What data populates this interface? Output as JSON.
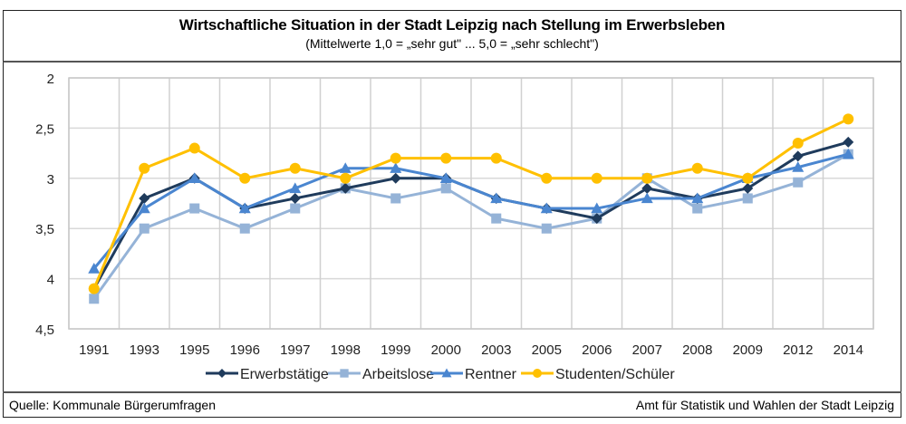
{
  "header": {
    "title": "Wirtschaftliche Situation in der Stadt Leipzig nach Stellung im Erwerbsleben",
    "subtitle": "(Mittelwerte 1,0 = „sehr gut\" ... 5,0 = „sehr schlecht\")"
  },
  "footer": {
    "source": "Quelle: Kommunale Bürgerumfragen",
    "organization": "Amt für Statistik und Wahlen der Stadt Leipzig"
  },
  "chart_data": {
    "type": "line",
    "title": "Wirtschaftliche Situation in der Stadt Leipzig nach Stellung im Erwerbsleben",
    "subtitle": "(Mittelwerte 1,0 = „sehr gut\" ... 5,0 = „sehr schlecht\")",
    "xlabel": "",
    "ylabel": "",
    "categories": [
      "1991",
      "1993",
      "1995",
      "1996",
      "1997",
      "1998",
      "1999",
      "2000",
      "2003",
      "2005",
      "2006",
      "2007",
      "2008",
      "2009",
      "2012",
      "2014"
    ],
    "ylim": [
      2,
      4.5
    ],
    "y_inverted": true,
    "yticks": [
      2,
      2.5,
      3,
      3.5,
      4,
      4.5
    ],
    "ytick_labels": [
      "2",
      "2,5",
      "3",
      "3,5",
      "4",
      "4,5"
    ],
    "grid": true,
    "legend_position": "bottom",
    "series": [
      {
        "name": "Erwerbstätige",
        "color": "#1f3b5c",
        "marker": "diamond",
        "values": [
          4.1,
          3.2,
          3.0,
          3.3,
          3.2,
          3.1,
          3.0,
          3.0,
          3.2,
          3.3,
          3.4,
          3.1,
          3.2,
          3.1,
          2.78,
          2.64
        ]
      },
      {
        "name": "Arbeitslose",
        "color": "#95b3d7",
        "marker": "square",
        "values": [
          4.2,
          3.5,
          3.3,
          3.5,
          3.3,
          3.1,
          3.2,
          3.1,
          3.4,
          3.5,
          3.4,
          3.0,
          3.3,
          3.2,
          3.04,
          2.76
        ]
      },
      {
        "name": "Rentner",
        "color": "#4a86d0",
        "marker": "triangle",
        "values": [
          3.9,
          3.3,
          3.0,
          3.3,
          3.1,
          2.9,
          2.9,
          3.0,
          3.2,
          3.3,
          3.3,
          3.2,
          3.2,
          3.0,
          2.89,
          2.76
        ]
      },
      {
        "name": "Studenten/Schüler",
        "color": "#ffc000",
        "marker": "circle",
        "values": [
          4.1,
          2.9,
          2.7,
          3.0,
          2.9,
          3.0,
          2.8,
          2.8,
          2.8,
          3.0,
          3.0,
          3.0,
          2.9,
          3.0,
          2.65,
          2.41
        ]
      }
    ]
  }
}
